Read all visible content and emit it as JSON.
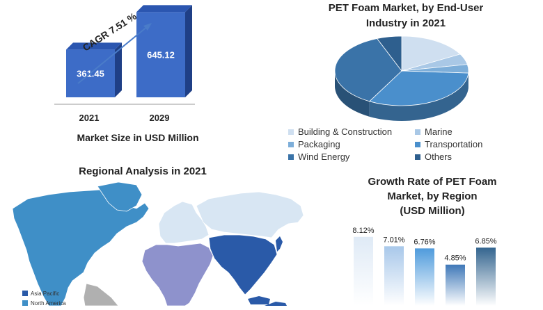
{
  "market_size": {
    "cagr_label": "CAGR 7.51 %",
    "caption": "Market Size in USD Million",
    "bars": [
      {
        "year": "2021",
        "value_label": "361.45"
      },
      {
        "year": "2029",
        "value_label": "645.12"
      }
    ]
  },
  "pie": {
    "title_line1": "PET Foam Market, by End-User",
    "title_line2": "Industry in 2021"
  },
  "region_map": {
    "title": "Regional Analysis in 2021",
    "legend": [
      {
        "label": "Asia Pacific",
        "color": "#2a5aa8"
      },
      {
        "label": "North America",
        "color": "#3f8fc7"
      }
    ]
  },
  "growth": {
    "title_line1": "Growth Rate of PET Foam",
    "title_line2": "Market, by Region",
    "title_line3": "(USD Million)"
  },
  "chart_data": [
    {
      "type": "bar",
      "title": "",
      "xlabel": "Market Size in USD Million",
      "ylabel": "",
      "categories": [
        "2021",
        "2029"
      ],
      "values": [
        361.45,
        645.12
      ],
      "annotation": "CAGR 7.51 %",
      "colors": [
        "#3d6cc7",
        "#3d6cc7"
      ]
    },
    {
      "type": "pie",
      "title": "PET Foam Market, by End-User Industry in 2021",
      "categories": [
        "Building & Construction",
        "Marine",
        "Packaging",
        "Transportation",
        "Wind Energy",
        "Others"
      ],
      "values": [
        17,
        5,
        4,
        32,
        36,
        6
      ],
      "colors": [
        "#cfdff0",
        "#a9c8e6",
        "#7daed9",
        "#4a8fcc",
        "#3a73a8",
        "#2e5f8e"
      ],
      "legend_position": "bottom"
    },
    {
      "type": "bar",
      "title": "Growth Rate of PET Foam Market, by Region (USD Million)",
      "categories": [
        "",
        "",
        "",
        "",
        ""
      ],
      "values": [
        8.12,
        7.01,
        6.76,
        4.85,
        6.85
      ],
      "value_labels": [
        "8.12%",
        "7.01%",
        "6.76%",
        "4.85%",
        "6.85%"
      ],
      "colors": [
        "#dbe8f5",
        "#b5d0ec",
        "#5da6df",
        "#4a86c3",
        "#3c6f99"
      ],
      "ylim": [
        0,
        9
      ]
    }
  ]
}
